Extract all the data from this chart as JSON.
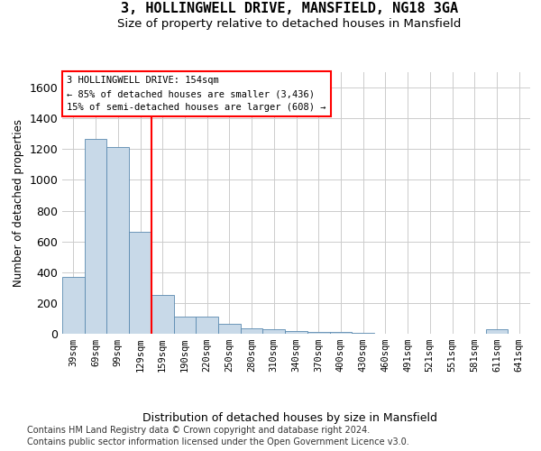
{
  "title": "3, HOLLINGWELL DRIVE, MANSFIELD, NG18 3GA",
  "subtitle": "Size of property relative to detached houses in Mansfield",
  "xlabel": "Distribution of detached houses by size in Mansfield",
  "ylabel": "Number of detached properties",
  "footer_line1": "Contains HM Land Registry data © Crown copyright and database right 2024.",
  "footer_line2": "Contains public sector information licensed under the Open Government Licence v3.0.",
  "annotation_line1": "3 HOLLINGWELL DRIVE: 154sqm",
  "annotation_line2": "← 85% of detached houses are smaller (3,436)",
  "annotation_line3": "15% of semi-detached houses are larger (608) →",
  "bar_categories": [
    "39sqm",
    "69sqm",
    "99sqm",
    "129sqm",
    "159sqm",
    "190sqm",
    "220sqm",
    "250sqm",
    "280sqm",
    "310sqm",
    "340sqm",
    "370sqm",
    "400sqm",
    "430sqm",
    "460sqm",
    "491sqm",
    "521sqm",
    "551sqm",
    "581sqm",
    "611sqm",
    "641sqm"
  ],
  "bar_values": [
    370,
    1265,
    1215,
    665,
    255,
    110,
    110,
    65,
    35,
    30,
    18,
    10,
    10,
    3,
    2,
    0,
    0,
    0,
    0,
    28,
    0
  ],
  "bar_color": "#c8d9e8",
  "bar_edge_color": "#5a8ab0",
  "ylim": [
    0,
    1700
  ],
  "yticks": [
    0,
    200,
    400,
    600,
    800,
    1000,
    1200,
    1400,
    1600
  ],
  "background_color": "#ffffff",
  "grid_color": "#cccccc"
}
